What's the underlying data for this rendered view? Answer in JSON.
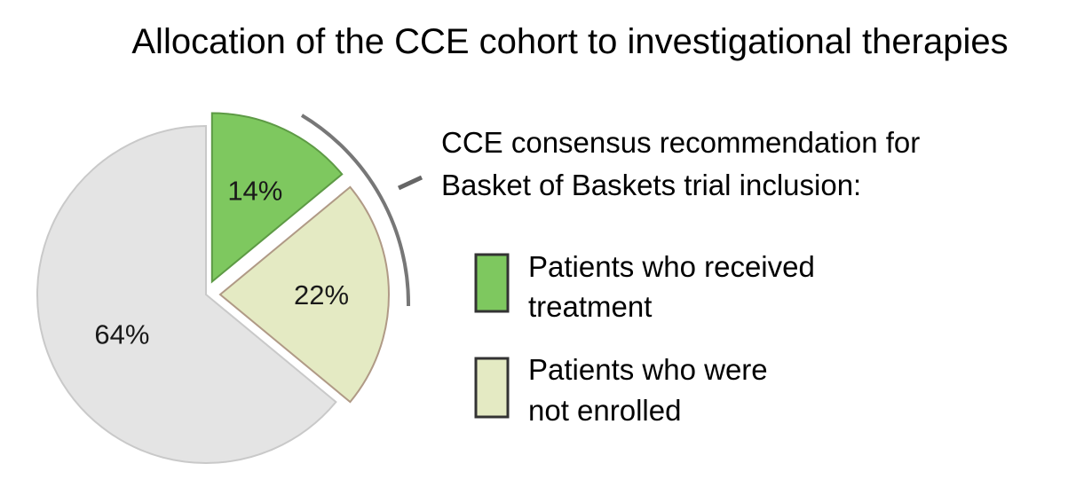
{
  "chart_data": {
    "type": "pie",
    "title": "Allocation of the CCE cohort to investigational therapies",
    "slices": [
      {
        "label": "Patients who received treatment",
        "value": 14,
        "display": "14%",
        "color": "#7ec85f",
        "exploded": true
      },
      {
        "label": "Patients who were not enrolled",
        "value": 22,
        "display": "22%",
        "color": "#e4eac3",
        "exploded": true
      },
      {
        "label": "",
        "value": 64,
        "display": "64%",
        "color": "#e4e4e4",
        "exploded": false
      }
    ],
    "bracket_label_lines": [
      "CCE consensus recommendation for",
      "Basket of Baskets trial inclusion:"
    ],
    "legend": [
      {
        "lines": [
          "Patients who received",
          "treatment"
        ],
        "color": "#7ec85f"
      },
      {
        "lines": [
          "Patients who were",
          "not enrolled"
        ],
        "color": "#e4eac3"
      }
    ]
  }
}
